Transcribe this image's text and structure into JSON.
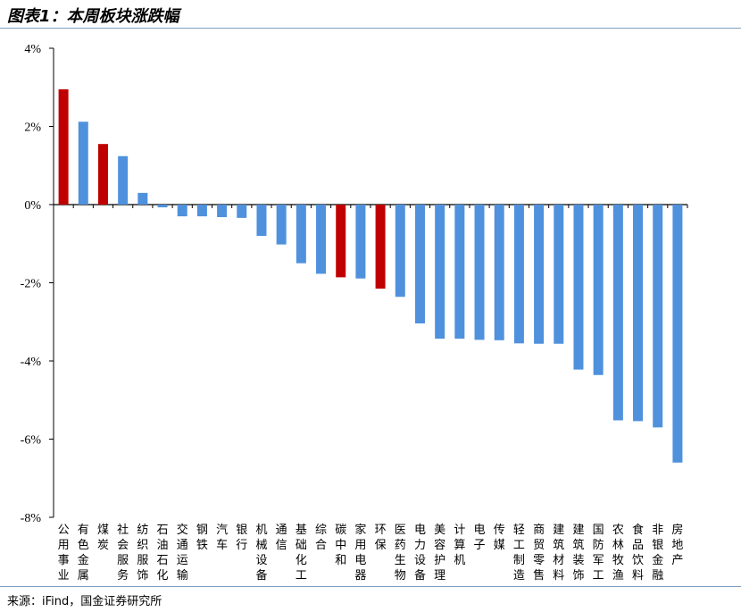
{
  "header": {
    "title": "图表1：本周板块涨跌幅"
  },
  "footer": {
    "source": "来源：iFind，国金证券研究所"
  },
  "chart_data": {
    "type": "bar",
    "title": "",
    "xlabel": "",
    "ylabel": "",
    "ylim": [
      -8,
      4
    ],
    "yticks": [
      4,
      2,
      0,
      -2,
      -4,
      -6,
      -8
    ],
    "ytick_labels": [
      "4%",
      "2%",
      "0%",
      "-2%",
      "-4%",
      "-6%",
      "-8%"
    ],
    "grid": false,
    "categories": [
      "公用事业",
      "有色金属",
      "煤炭",
      "社会服务",
      "纺织服饰",
      "石油石化",
      "交通运输",
      "钢铁",
      "汽车",
      "银行",
      "机械设备",
      "通信",
      "基础化工",
      "综合",
      "碳中和",
      "家用电器",
      "环保",
      "医药生物",
      "电力设备",
      "美容护理",
      "计算机",
      "电子",
      "传媒",
      "轻工制造",
      "商贸零售",
      "建筑材料",
      "建筑装饰",
      "国防军工",
      "农林牧渔",
      "食品饮料",
      "非银金融",
      "房地产"
    ],
    "values": [
      2.95,
      2.12,
      1.55,
      1.24,
      0.3,
      -0.07,
      -0.3,
      -0.3,
      -0.32,
      -0.34,
      -0.8,
      -1.02,
      -1.5,
      -1.77,
      -1.86,
      -1.89,
      -2.15,
      -2.36,
      -3.04,
      -3.43,
      -3.43,
      -3.46,
      -3.47,
      -3.55,
      -3.56,
      -3.56,
      -4.22,
      -4.36,
      -5.52,
      -5.54,
      -5.7,
      -6.6
    ],
    "highlight": [
      "公用事业",
      "煤炭",
      "碳中和",
      "环保"
    ],
    "colors": {
      "default": "#4f91dd",
      "highlight": "#c00000"
    }
  }
}
